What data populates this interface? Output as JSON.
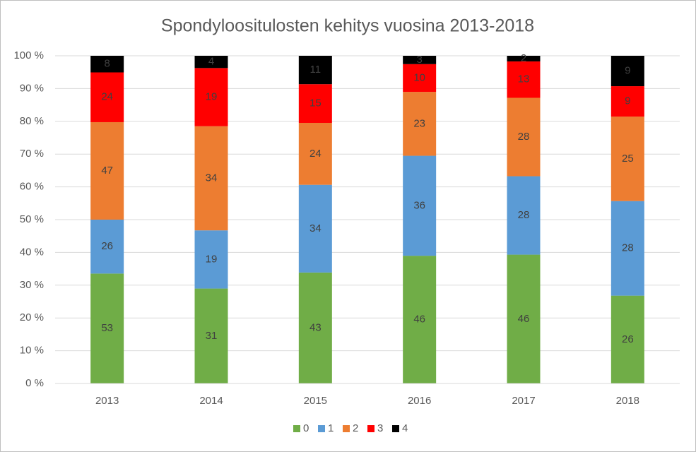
{
  "chart_data": {
    "type": "bar",
    "stacked": "percent",
    "title": "Spondyloositulosten kehitys vuosina 2013-2018",
    "categories": [
      "2013",
      "2014",
      "2015",
      "2016",
      "2017",
      "2018"
    ],
    "series": [
      {
        "name": "0",
        "color": "#70ad47",
        "values": [
          53,
          31,
          43,
          46,
          46,
          26
        ]
      },
      {
        "name": "1",
        "color": "#5b9bd5",
        "values": [
          26,
          19,
          34,
          36,
          28,
          28
        ]
      },
      {
        "name": "2",
        "color": "#ed7d31",
        "values": [
          47,
          34,
          24,
          23,
          28,
          25
        ]
      },
      {
        "name": "3",
        "color": "#ff0000",
        "values": [
          24,
          19,
          15,
          10,
          13,
          9
        ]
      },
      {
        "name": "4",
        "color": "#000000",
        "values": [
          8,
          4,
          11,
          3,
          2,
          9
        ]
      }
    ],
    "ylim": [
      0,
      100
    ],
    "yticks": [
      {
        "value": 0,
        "label": "0 %"
      },
      {
        "value": 10,
        "label": "10 %"
      },
      {
        "value": 20,
        "label": "20 %"
      },
      {
        "value": 30,
        "label": "30 %"
      },
      {
        "value": 40,
        "label": "40 %"
      },
      {
        "value": 50,
        "label": "50 %"
      },
      {
        "value": 60,
        "label": "60 %"
      },
      {
        "value": 70,
        "label": "70 %"
      },
      {
        "value": 80,
        "label": "80 %"
      },
      {
        "value": 90,
        "label": "90 %"
      },
      {
        "value": 100,
        "label": "100 %"
      }
    ],
    "grid": true,
    "legend": "bottom"
  }
}
